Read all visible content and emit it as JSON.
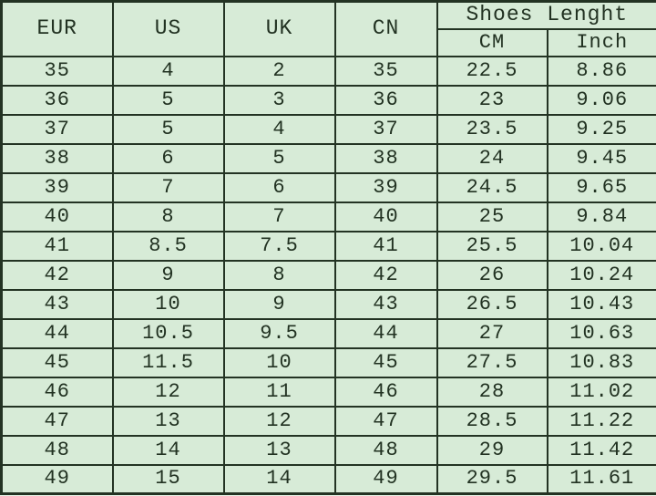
{
  "table": {
    "group_title": "Shoes Lenght",
    "columns": {
      "eur": "EUR",
      "us": "US",
      "uk": "UK",
      "cn": "CN",
      "cm": "CM",
      "inch": "Inch"
    },
    "rows": [
      {
        "eur": "35",
        "us": "4",
        "uk": "2",
        "cn": "35",
        "cm": "22.5",
        "inch": "8.86"
      },
      {
        "eur": "36",
        "us": "5",
        "uk": "3",
        "cn": "36",
        "cm": "23",
        "inch": "9.06"
      },
      {
        "eur": "37",
        "us": "5",
        "uk": "4",
        "cn": "37",
        "cm": "23.5",
        "inch": "9.25"
      },
      {
        "eur": "38",
        "us": "6",
        "uk": "5",
        "cn": "38",
        "cm": "24",
        "inch": "9.45"
      },
      {
        "eur": "39",
        "us": "7",
        "uk": "6",
        "cn": "39",
        "cm": "24.5",
        "inch": "9.65"
      },
      {
        "eur": "40",
        "us": "8",
        "uk": "7",
        "cn": "40",
        "cm": "25",
        "inch": "9.84"
      },
      {
        "eur": "41",
        "us": "8.5",
        "uk": "7.5",
        "cn": "41",
        "cm": "25.5",
        "inch": "10.04"
      },
      {
        "eur": "42",
        "us": "9",
        "uk": "8",
        "cn": "42",
        "cm": "26",
        "inch": "10.24"
      },
      {
        "eur": "43",
        "us": "10",
        "uk": "9",
        "cn": "43",
        "cm": "26.5",
        "inch": "10.43"
      },
      {
        "eur": "44",
        "us": "10.5",
        "uk": "9.5",
        "cn": "44",
        "cm": "27",
        "inch": "10.63"
      },
      {
        "eur": "45",
        "us": "11.5",
        "uk": "10",
        "cn": "45",
        "cm": "27.5",
        "inch": "10.83"
      },
      {
        "eur": "46",
        "us": "12",
        "uk": "11",
        "cn": "46",
        "cm": "28",
        "inch": "11.02"
      },
      {
        "eur": "47",
        "us": "13",
        "uk": "12",
        "cn": "47",
        "cm": "28.5",
        "inch": "11.22"
      },
      {
        "eur": "48",
        "us": "14",
        "uk": "13",
        "cn": "48",
        "cm": "29",
        "inch": "11.42"
      },
      {
        "eur": "49",
        "us": "15",
        "uk": "14",
        "cn": "49",
        "cm": "29.5",
        "inch": "11.61"
      }
    ]
  },
  "colors": {
    "background": "#d7ebd7",
    "grid_line": "#233323",
    "text": "#223222",
    "page_background": "#e9f4e8"
  },
  "chart_data": {
    "type": "table",
    "title": "Shoes Lenght",
    "columns": [
      "EUR",
      "US",
      "UK",
      "CN",
      "CM",
      "Inch"
    ],
    "rows": [
      [
        "35",
        "4",
        "2",
        "35",
        "22.5",
        "8.86"
      ],
      [
        "36",
        "5",
        "3",
        "36",
        "23",
        "9.06"
      ],
      [
        "37",
        "5",
        "4",
        "37",
        "23.5",
        "9.25"
      ],
      [
        "38",
        "6",
        "5",
        "38",
        "24",
        "9.45"
      ],
      [
        "39",
        "7",
        "6",
        "39",
        "24.5",
        "9.65"
      ],
      [
        "40",
        "8",
        "7",
        "40",
        "25",
        "9.84"
      ],
      [
        "41",
        "8.5",
        "7.5",
        "41",
        "25.5",
        "10.04"
      ],
      [
        "42",
        "9",
        "8",
        "42",
        "26",
        "10.24"
      ],
      [
        "43",
        "10",
        "9",
        "43",
        "26.5",
        "10.43"
      ],
      [
        "44",
        "10.5",
        "9.5",
        "44",
        "27",
        "10.63"
      ],
      [
        "45",
        "11.5",
        "10",
        "45",
        "27.5",
        "10.83"
      ],
      [
        "46",
        "12",
        "11",
        "46",
        "28",
        "11.02"
      ],
      [
        "47",
        "13",
        "12",
        "47",
        "28.5",
        "11.22"
      ],
      [
        "48",
        "14",
        "13",
        "48",
        "29",
        "11.42"
      ],
      [
        "49",
        "15",
        "14",
        "49",
        "29.5",
        "11.61"
      ]
    ]
  }
}
